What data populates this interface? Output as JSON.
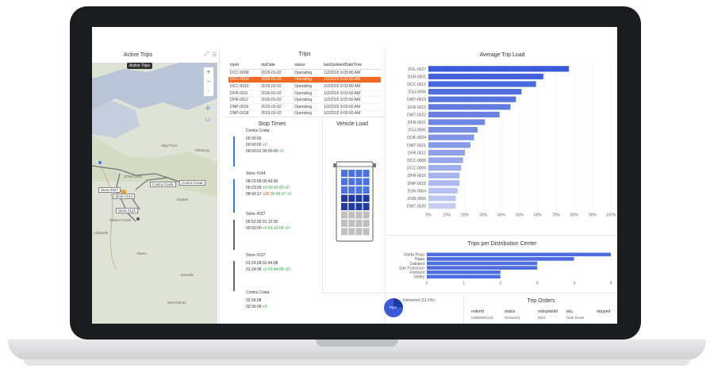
{
  "dashboard": {
    "active_trips": {
      "title": "Active Trips",
      "tooltip": "Active Trips",
      "zoom_in": "+",
      "zoom_out": "−",
      "stops": [
        "Contra Costa",
        "Store #027",
        "Store #144",
        "Store #137"
      ],
      "places": [
        "Bay Point",
        "Pittsburg",
        "CONCORD",
        "Clayton",
        "Walnut Creek",
        "Alamo",
        "San Ramon",
        "Danville",
        "Lafayette"
      ]
    },
    "trips": {
      "title": "Trips",
      "columns": [
        "tripId",
        "tripDate",
        "status",
        "lastUpdatedDateTime"
      ],
      "rows": [
        [
          "DCC-0008",
          "2015-01-02",
          "Operating",
          "1/2/2015 9:03:80 AM"
        ],
        [
          "DCC-0004",
          "2015-01-02",
          "Operating",
          "1/2/2015 9:03:60 AM"
        ],
        [
          "DCC-0016",
          "2015-01-02",
          "Operating",
          "1/2/2015 9:03:80 AM"
        ],
        [
          "DFR-0011",
          "2015-01-02",
          "Operating",
          "1/2/2015 9:03:60 AM"
        ],
        [
          "DFR-0012",
          "2015-01-02",
          "Operating",
          "1/2/2015 9:02:60 AM"
        ],
        [
          "DNP-0016",
          "2015-01-02",
          "Operating",
          "1/2/2015 9:03:60 AM"
        ],
        [
          "DNP-0018",
          "2015-01-02",
          "Operating",
          "1/2/2015 9:03:60 AM"
        ]
      ],
      "selected_row": 1
    },
    "stop_times": {
      "title": "Stop Times",
      "stops": [
        {
          "name": "Contra Costa",
          "lines": [
            [
              "",
              "00:00:00",
              ""
            ],
            [
              "",
              "00:00:00",
              "+0"
            ],
            [
              "08:00:01",
              "00:00:00",
              "+0"
            ]
          ]
        },
        {
          "name": "Store #144",
          "lines": [
            [
              "08:23:09",
              "00:43:00",
              ""
            ],
            [
              "00:23:09",
              "+0",
              "00:43:00 +0"
            ],
            [
              "08:43:17",
              "+20",
              "00:45:17 +0"
            ]
          ]
        },
        {
          "name": "Store #027",
          "lines": [
            [
              "00:52:00",
              "01:12:00",
              ""
            ],
            [
              "00:52:00",
              "+0",
              "01:12:00 +0"
            ]
          ]
        },
        {
          "name": "Store #137",
          "lines": [
            [
              "01:24:08",
              "01:44:08",
              ""
            ],
            [
              "01:24:08",
              "+0",
              "01:44:08 +0"
            ]
          ]
        },
        {
          "name": "Contra Costa",
          "lines": [
            [
              "02:06:08",
              "",
              ""
            ],
            [
              "02:06:08",
              "+0",
              ""
            ]
          ]
        }
      ]
    },
    "vehicle_load": {
      "title": "Vehicle Load",
      "filled_blue": 12,
      "filled_dark": 8,
      "empty": 12
    },
    "pie": {
      "label": "Delivered (31.5%)",
      "center": "Trips"
    },
    "trip_orders": {
      "title": "Trip Orders",
      "columns": [
        "orderId",
        "status",
        "redoplantId",
        "sku",
        "skipped"
      ],
      "row": [
        "CMB0060133",
        "Delivered",
        "8001",
        "Dark Roast",
        ""
      ]
    }
  },
  "chart_data": [
    {
      "type": "bar",
      "title": "Average Trip Load",
      "orientation": "horizontal",
      "categories": [
        "DVL-0027",
        "DSR-0001",
        "DCC-0012",
        "DSJ-0006",
        "DWT-0019",
        "DFR-0015",
        "DWT-0022",
        "DFR-0021",
        "DSJ-0005",
        "DOK-0024",
        "DWT-0021",
        "DFR-0012",
        "DCC-0008",
        "DCC-0009",
        "DFR-0016",
        "DNP-0018",
        "DSR-0004",
        "DSR-0006",
        "DWT-0020"
      ],
      "values": [
        0.77,
        0.63,
        0.59,
        0.51,
        0.48,
        0.45,
        0.39,
        0.31,
        0.27,
        0.25,
        0.23,
        0.2,
        0.19,
        0.18,
        0.17,
        0.17,
        0.16,
        0.15,
        0.15
      ],
      "xlim": [
        0,
        1
      ],
      "xticks": [
        "0%",
        "10%",
        "20%",
        "30%",
        "40%",
        "50%",
        "60%",
        "70%",
        "80%",
        "90%",
        "100%"
      ],
      "colors": {
        "top": "#3a5bd9",
        "fade": "#c5cdf3"
      }
    },
    {
      "type": "bar",
      "title": "Trips per Distribution Center",
      "orientation": "horizontal",
      "categories": [
        "Santa Rosa",
        "Napa",
        "Oakland",
        "San Francisco",
        "Fremont",
        "Valley"
      ],
      "values": [
        5,
        4,
        3,
        3,
        2,
        2
      ],
      "xlim": [
        0,
        5
      ],
      "xticks": [
        "0",
        "1",
        "2",
        "3",
        "4",
        "5"
      ],
      "color": "#4e6ee0"
    }
  ]
}
